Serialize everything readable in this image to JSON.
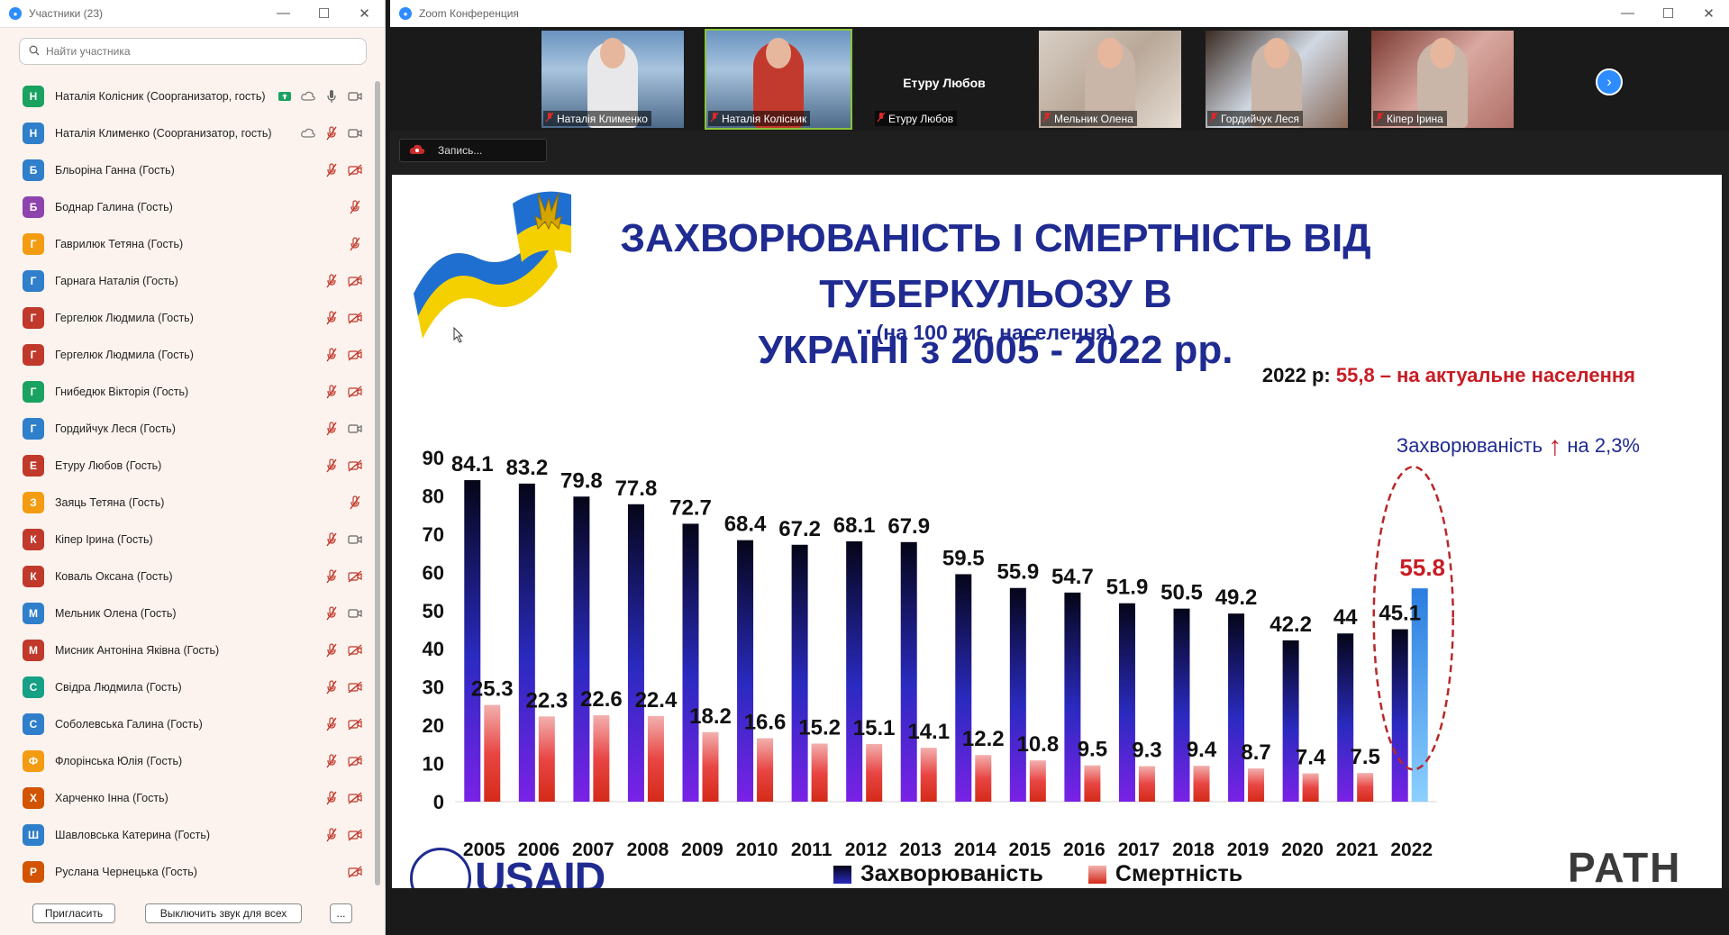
{
  "participants_window": {
    "title": "Участники (23)",
    "search_placeholder": "Найти участника",
    "participants": [
      {
        "initial": "Н",
        "name": "Наталія Колісник (Соорганизатор, гость)",
        "color": "#1aa260",
        "icons": [
          "share-screen-icon",
          "cloud-icon",
          "mic-icon",
          "video-icon"
        ]
      },
      {
        "initial": "Н",
        "name": "Наталія Клименко (Соорганизатор, гость)",
        "color": "#2f7fcb",
        "icons": [
          "cloud-icon",
          "mic-muted-icon",
          "video-icon"
        ]
      },
      {
        "initial": "Б",
        "name": "Бльоріна Ганна (Гость)",
        "color": "#2f7fcb",
        "icons": [
          "mic-muted-icon",
          "video-off-icon"
        ]
      },
      {
        "initial": "Б",
        "name": "Боднар Галина (Гость)",
        "color": "#8e44ad",
        "icons": [
          "mic-muted-icon"
        ]
      },
      {
        "initial": "Г",
        "name": "Гаврилюк Тетяна (Гость)",
        "color": "#f39c12",
        "icons": [
          "mic-muted-icon"
        ]
      },
      {
        "initial": "Г",
        "name": "Гарнага Наталія (Гость)",
        "color": "#2f7fcb",
        "icons": [
          "mic-muted-icon",
          "video-off-icon"
        ]
      },
      {
        "initial": "Г",
        "name": "Гергелюк Людмила (Гость)",
        "color": "#c0392b",
        "icons": [
          "mic-muted-icon",
          "video-off-icon"
        ]
      },
      {
        "initial": "Г",
        "name": "Гергелюк Людмила (Гость)",
        "color": "#c0392b",
        "icons": [
          "mic-muted-icon",
          "video-off-icon"
        ]
      },
      {
        "initial": "Г",
        "name": "Гнибедюк Вікторія (Гость)",
        "color": "#1aa260",
        "icons": [
          "mic-muted-icon",
          "video-off-icon"
        ]
      },
      {
        "initial": "Г",
        "name": "Гордийчук Леся (Гость)",
        "color": "#2f7fcb",
        "icons": [
          "mic-muted-icon",
          "video-icon"
        ]
      },
      {
        "initial": "Е",
        "name": "Етуру Любов (Гость)",
        "color": "#c0392b",
        "icons": [
          "mic-muted-icon",
          "video-off-icon"
        ]
      },
      {
        "initial": "З",
        "name": "Заяць Тетяна (Гость)",
        "color": "#f39c12",
        "icons": [
          "mic-muted-icon"
        ]
      },
      {
        "initial": "К",
        "name": "Кіпер Ірина (Гость)",
        "color": "#c0392b",
        "icons": [
          "mic-muted-icon",
          "video-icon"
        ]
      },
      {
        "initial": "К",
        "name": "Коваль Оксана (Гость)",
        "color": "#c0392b",
        "icons": [
          "mic-muted-icon",
          "video-off-icon"
        ]
      },
      {
        "initial": "М",
        "name": "Мельник Олена (Гость)",
        "color": "#2f7fcb",
        "icons": [
          "mic-muted-icon",
          "video-icon"
        ]
      },
      {
        "initial": "М",
        "name": "Мисник Антоніна Яківна (Гость)",
        "color": "#c0392b",
        "icons": [
          "mic-muted-icon",
          "video-off-icon"
        ]
      },
      {
        "initial": "С",
        "name": "Свідра Людмила (Гость)",
        "color": "#16a085",
        "icons": [
          "mic-muted-icon",
          "video-off-icon"
        ]
      },
      {
        "initial": "С",
        "name": "Соболевська Галина (Гость)",
        "color": "#2f7fcb",
        "icons": [
          "mic-muted-icon",
          "video-off-icon"
        ]
      },
      {
        "initial": "Ф",
        "name": "Флорінська Юлія (Гость)",
        "color": "#f39c12",
        "icons": [
          "mic-muted-icon",
          "video-off-icon"
        ]
      },
      {
        "initial": "Х",
        "name": "Харченко Інна (Гость)",
        "color": "#d35400",
        "icons": [
          "mic-muted-icon",
          "video-off-icon"
        ]
      },
      {
        "initial": "Ш",
        "name": "Шавловська Катерина (Гость)",
        "color": "#2f7fcb",
        "icons": [
          "mic-muted-icon",
          "video-off-icon"
        ]
      },
      {
        "initial": "Р",
        "name": "Руслана Чернецька (Гость)",
        "color": "#d35400",
        "icons": [
          "video-off-icon"
        ]
      }
    ],
    "invite_label": "Пригласить",
    "mute_all_label": "Выключить звук для всех",
    "more_label": "..."
  },
  "meeting_window": {
    "title": "Zoom Конференция",
    "video_tiles": [
      {
        "name": "Наталія Клименко",
        "type": "video"
      },
      {
        "name": "Наталія Колісник",
        "type": "video",
        "active": true
      },
      {
        "name": "Етуру Любов",
        "type": "name-only",
        "big_name": "Етуру Любов"
      },
      {
        "name": "Мельник Олена",
        "type": "video"
      },
      {
        "name": "Гордийчук Леся",
        "type": "video"
      },
      {
        "name": "Кіпер Ірина",
        "type": "video"
      }
    ],
    "recording_label": "Запись..."
  },
  "slide": {
    "title_line1": "ЗАХВОРЮВАНІСТЬ І СМЕРТНІСТЬ ВІД ТУБЕРКУЛЬОЗУ В",
    "title_line2": "УКРАЇНІ з 2005 - 2022 рр.",
    "subtitle": "(на 100 тис. населення)",
    "note_prefix": "2022 р: ",
    "note_value": "55,8  – на актуальне населення",
    "incidence_note": "Захворюваність",
    "incidence_change": "на 2,3%",
    "highlight_value": "55.8",
    "logo_left": "USAID",
    "logo_right": "PATH",
    "colors": {
      "incidence": "#1a1a8c",
      "mortality": "#e0302e",
      "title": "#1f2b91",
      "accent": "#c81c24"
    }
  },
  "chart_data": {
    "type": "bar",
    "categories": [
      "2005",
      "2006",
      "2007",
      "2008",
      "2009",
      "2010",
      "2011",
      "2012",
      "2013",
      "2014",
      "2015",
      "2016",
      "2017",
      "2018",
      "2019",
      "2020",
      "2021",
      "2022"
    ],
    "series": [
      {
        "name": "Захворюваність",
        "values": [
          84.1,
          83.2,
          79.8,
          77.8,
          72.7,
          68.4,
          67.2,
          68.1,
          67.9,
          59.5,
          55.9,
          54.7,
          51.9,
          50.5,
          49.2,
          42.2,
          44,
          45.1
        ]
      },
      {
        "name": "Смертність",
        "values": [
          25.3,
          22.3,
          22.6,
          22.4,
          18.2,
          16.6,
          15.2,
          15.1,
          14.1,
          12.2,
          10.8,
          9.5,
          9.3,
          9.4,
          8.7,
          7.4,
          7.5,
          null
        ]
      }
    ],
    "extra_bar_2022": 55.8,
    "ylim": [
      0,
      90
    ],
    "yticks": [
      0,
      10,
      20,
      30,
      40,
      50,
      60,
      70,
      80,
      90
    ],
    "legend_position": "bottom",
    "grid": false
  }
}
